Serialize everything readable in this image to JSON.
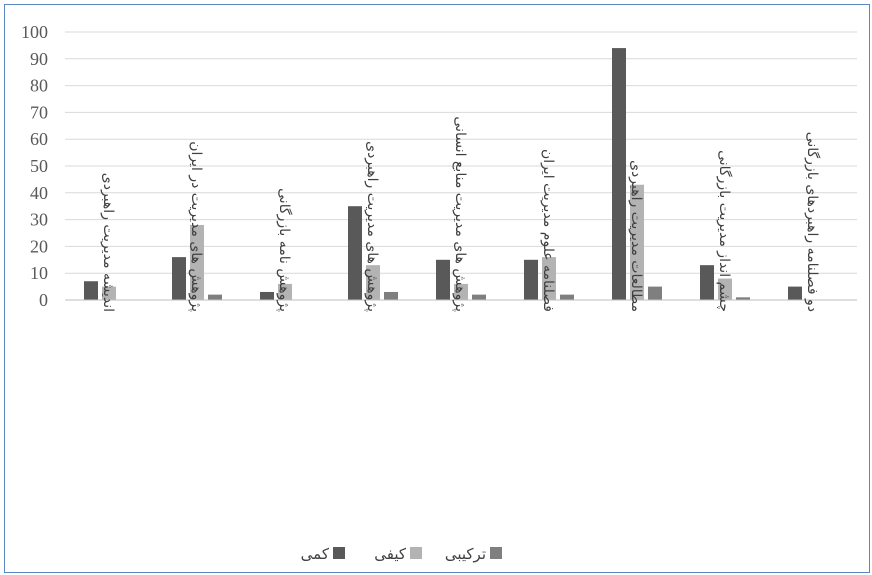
{
  "chart_data": {
    "type": "bar",
    "title": "",
    "xlabel": "",
    "ylabel": "",
    "ylim": [
      0,
      100
    ],
    "yticks": [
      0,
      10,
      20,
      30,
      40,
      50,
      60,
      70,
      80,
      90,
      100
    ],
    "grid": true,
    "legend_position": "bottom",
    "categories": [
      "اندیشه مدیریت راهبردی",
      "پژوهش های مدیریت در ایران",
      "پژوهش نامه بازرگانی",
      "پژوهش های مدیریت راهبردی",
      "پژوهش های مدیریت منابع انسانی",
      "فصلنامه علوم مدیریت ایران",
      "مطالعات مدیریت راهبردی",
      "چشم انداز مدیریت بازرگانی",
      "دو فصلنامه راهبردهای بازرگانی"
    ],
    "series": [
      {
        "name": "کمی",
        "color": "#595959",
        "values": [
          7,
          16,
          3,
          35,
          15,
          15,
          94,
          13,
          5
        ]
      },
      {
        "name": "کیفی",
        "color": "#b3b3b3",
        "values": [
          5,
          28,
          6,
          13,
          6,
          16,
          43,
          8,
          0
        ]
      },
      {
        "name": "ترکیبی",
        "color": "#7f7f7f",
        "values": [
          0,
          2,
          0,
          3,
          2,
          2,
          5,
          1,
          0
        ]
      }
    ]
  }
}
